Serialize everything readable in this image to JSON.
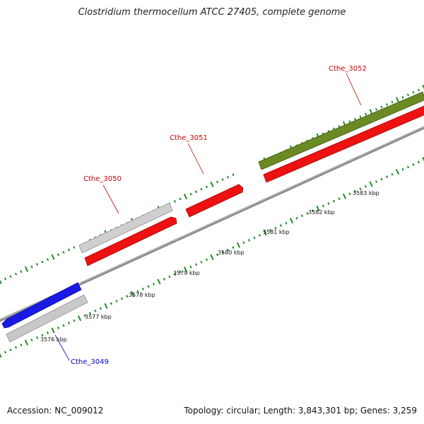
{
  "title": "Clostridium thermocellum ATCC 27405, complete genome",
  "footer": {
    "accession": "Accession: NC_009012",
    "summary": "Topology: circular; Length: 3,843,301 bp; Genes: 3,259"
  },
  "scale": {
    "unit": "kbp",
    "labels": [
      "3576 kbp",
      "3577 kbp",
      "3578 kbp",
      "3579 kbp",
      "3580 kbp",
      "3581 kbp",
      "3582 kbp",
      "3583 kbp"
    ]
  },
  "genes": [
    {
      "name": "Cthe_3049",
      "color": "#0000cc"
    },
    {
      "name": "Cthe_3050",
      "color": "#cc0000"
    },
    {
      "name": "Cthe_3051",
      "color": "#cc0000"
    },
    {
      "name": "Cthe_3052",
      "color": "#cc0000"
    }
  ],
  "colors": {
    "blue_gene": "#1a1ae6",
    "red_gene": "#ee1111",
    "gray_gene": "#c8c8c8",
    "olive_gene": "#6b8a23",
    "backbone": "#8a8a8a",
    "ticks": "#1f8a1f"
  }
}
